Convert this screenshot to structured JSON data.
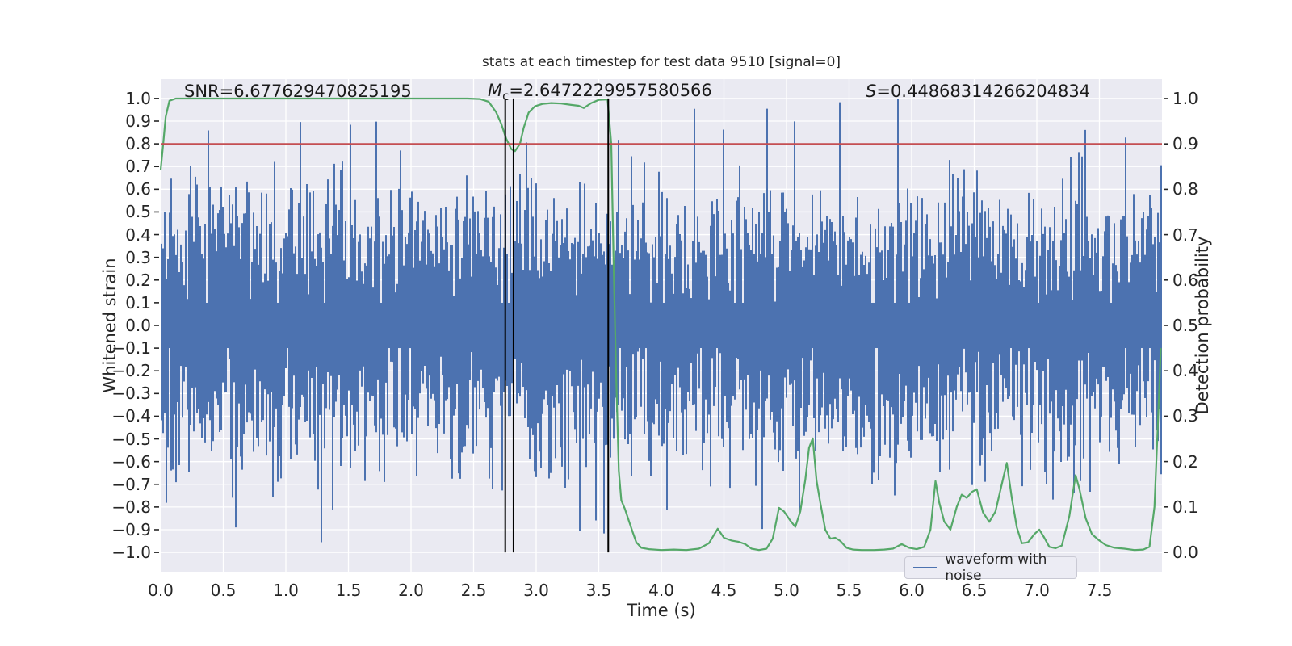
{
  "figure": {
    "title": "stats at each timestep for test data 9510 [signal=0]"
  },
  "annotations": {
    "snr": {
      "text": "SNR=6.677629470825195"
    },
    "mc": {
      "symbol": "M",
      "subscript": "c",
      "rest": "=2.6472229957580566"
    },
    "s": {
      "symbol": "S",
      "rest": "=0.44868314266204834"
    }
  },
  "axes": {
    "x": {
      "label": "Time (s)",
      "min": 0,
      "max": 8,
      "ticks": [
        0,
        0.5,
        1,
        1.5,
        2,
        2.5,
        3,
        3.5,
        4,
        4.5,
        5,
        5.5,
        6,
        6.5,
        7,
        7.5
      ],
      "tick_labels": [
        "0.0",
        "0.5",
        "1.0",
        "1.5",
        "2.0",
        "2.5",
        "3.0",
        "3.5",
        "4.0",
        "4.5",
        "5.0",
        "5.5",
        "6.0",
        "6.5",
        "7.0",
        "7.5"
      ]
    },
    "y_left": {
      "label": "Whitened strain",
      "min": -1.085,
      "max": 1.085,
      "ticks": [
        1.0,
        0.9,
        0.8,
        0.7,
        0.6,
        0.5,
        0.4,
        0.3,
        0.2,
        0.1,
        0.0,
        -0.1,
        -0.2,
        -0.3,
        -0.4,
        -0.5,
        -0.6,
        -0.7,
        -0.8,
        -0.9,
        -1.0
      ],
      "tick_labels": [
        "1.0",
        "0.9",
        "0.8",
        "0.7",
        "0.6",
        "0.5",
        "0.4",
        "0.3",
        "0.2",
        "0.1",
        "0.0",
        "−0.1",
        "−0.2",
        "−0.3",
        "−0.4",
        "−0.5",
        "−0.6",
        "−0.7",
        "−0.8",
        "−0.9",
        "−1.0"
      ]
    },
    "y_right": {
      "label": "Detection probability",
      "min": -0.0427,
      "max": 1.0427,
      "ticks": [
        1.0,
        0.9,
        0.8,
        0.7,
        0.6,
        0.5,
        0.4,
        0.3,
        0.2,
        0.1,
        0.0
      ],
      "tick_labels": [
        "1.0",
        "0.9",
        "0.8",
        "0.7",
        "0.6",
        "0.5",
        "0.4",
        "0.3",
        "0.2",
        "0.1",
        "0.0"
      ]
    }
  },
  "legend": {
    "items": [
      {
        "label": "waveform with noise",
        "color": "#4c72b0"
      }
    ]
  },
  "colors": {
    "plot_background": "#eaeaf2",
    "grid": "#ffffff",
    "waveform": "#4c72b0",
    "probability": "#55a868",
    "threshold": "#c44e52",
    "marker": "#000000",
    "text": "#262626"
  },
  "chart_data": {
    "type": "line",
    "title": "stats at each timestep for test data 9510 [signal=0]",
    "xlabel": "Time (s)",
    "ylabel_left": "Whitened strain",
    "ylabel_right": "Detection probability",
    "xlim": [
      0,
      8
    ],
    "ylim_left": [
      -1.085,
      1.085
    ],
    "ylim_right": [
      -0.0427,
      1.0427
    ],
    "grid": true,
    "legend_position": "lower right",
    "series": [
      {
        "name": "waveform with noise",
        "axis": "left",
        "kind": "noise-envelope",
        "color": "#4c72b0",
        "note": "dense whitened-noise trace spanning roughly ±0.4 with spikes to ±1.0; reproduced via seeded generator",
        "generator": {
          "seed": 20,
          "columns": 620,
          "samples_per_column": 8,
          "sigma": 0.28,
          "clip": 1.02,
          "floor": 0.1
        }
      },
      {
        "name": "detection probability",
        "axis": "right",
        "kind": "line",
        "color": "#55a868",
        "points": [
          [
            0.0,
            0.843
          ],
          [
            0.02,
            0.9
          ],
          [
            0.04,
            0.96
          ],
          [
            0.07,
            0.995
          ],
          [
            0.12,
            1.0
          ],
          [
            0.5,
            1.0
          ],
          [
            1.0,
            1.0
          ],
          [
            1.5,
            1.0
          ],
          [
            2.0,
            1.0
          ],
          [
            2.45,
            1.0
          ],
          [
            2.55,
            0.999
          ],
          [
            2.62,
            0.993
          ],
          [
            2.68,
            0.97
          ],
          [
            2.72,
            0.945
          ],
          [
            2.76,
            0.912
          ],
          [
            2.8,
            0.889
          ],
          [
            2.83,
            0.884
          ],
          [
            2.87,
            0.9
          ],
          [
            2.9,
            0.935
          ],
          [
            2.94,
            0.969
          ],
          [
            2.99,
            0.983
          ],
          [
            3.05,
            0.988
          ],
          [
            3.12,
            0.99
          ],
          [
            3.2,
            0.989
          ],
          [
            3.28,
            0.986
          ],
          [
            3.34,
            0.984
          ],
          [
            3.38,
            0.979
          ],
          [
            3.44,
            0.99
          ],
          [
            3.5,
            0.997
          ],
          [
            3.57,
            0.998
          ],
          [
            3.6,
            0.9
          ],
          [
            3.62,
            0.62
          ],
          [
            3.64,
            0.38
          ],
          [
            3.66,
            0.18
          ],
          [
            3.68,
            0.115
          ],
          [
            3.71,
            0.095
          ],
          [
            3.74,
            0.07
          ],
          [
            3.77,
            0.045
          ],
          [
            3.8,
            0.022
          ],
          [
            3.84,
            0.01
          ],
          [
            3.9,
            0.007
          ],
          [
            4.0,
            0.005
          ],
          [
            4.1,
            0.006
          ],
          [
            4.2,
            0.005
          ],
          [
            4.3,
            0.008
          ],
          [
            4.38,
            0.02
          ],
          [
            4.45,
            0.052
          ],
          [
            4.5,
            0.032
          ],
          [
            4.56,
            0.026
          ],
          [
            4.62,
            0.023
          ],
          [
            4.67,
            0.018
          ],
          [
            4.72,
            0.008
          ],
          [
            4.78,
            0.005
          ],
          [
            4.84,
            0.008
          ],
          [
            4.89,
            0.03
          ],
          [
            4.94,
            0.098
          ],
          [
            4.98,
            0.09
          ],
          [
            5.03,
            0.07
          ],
          [
            5.07,
            0.056
          ],
          [
            5.11,
            0.09
          ],
          [
            5.15,
            0.16
          ],
          [
            5.18,
            0.23
          ],
          [
            5.21,
            0.251
          ],
          [
            5.24,
            0.158
          ],
          [
            5.27,
            0.11
          ],
          [
            5.31,
            0.05
          ],
          [
            5.35,
            0.03
          ],
          [
            5.39,
            0.032
          ],
          [
            5.43,
            0.025
          ],
          [
            5.48,
            0.01
          ],
          [
            5.53,
            0.006
          ],
          [
            5.6,
            0.005
          ],
          [
            5.7,
            0.005
          ],
          [
            5.78,
            0.006
          ],
          [
            5.85,
            0.008
          ],
          [
            5.92,
            0.018
          ],
          [
            5.98,
            0.01
          ],
          [
            6.04,
            0.007
          ],
          [
            6.1,
            0.012
          ],
          [
            6.15,
            0.05
          ],
          [
            6.19,
            0.157
          ],
          [
            6.22,
            0.11
          ],
          [
            6.26,
            0.068
          ],
          [
            6.31,
            0.05
          ],
          [
            6.36,
            0.1
          ],
          [
            6.4,
            0.127
          ],
          [
            6.44,
            0.12
          ],
          [
            6.48,
            0.133
          ],
          [
            6.52,
            0.139
          ],
          [
            6.57,
            0.088
          ],
          [
            6.62,
            0.067
          ],
          [
            6.67,
            0.09
          ],
          [
            6.72,
            0.15
          ],
          [
            6.76,
            0.197
          ],
          [
            6.8,
            0.12
          ],
          [
            6.84,
            0.055
          ],
          [
            6.88,
            0.02
          ],
          [
            6.93,
            0.022
          ],
          [
            6.98,
            0.04
          ],
          [
            7.02,
            0.05
          ],
          [
            7.06,
            0.032
          ],
          [
            7.1,
            0.012
          ],
          [
            7.15,
            0.009
          ],
          [
            7.2,
            0.015
          ],
          [
            7.26,
            0.08
          ],
          [
            7.31,
            0.17
          ],
          [
            7.34,
            0.14
          ],
          [
            7.39,
            0.075
          ],
          [
            7.44,
            0.04
          ],
          [
            7.49,
            0.028
          ],
          [
            7.55,
            0.016
          ],
          [
            7.62,
            0.01
          ],
          [
            7.7,
            0.008
          ],
          [
            7.78,
            0.005
          ],
          [
            7.85,
            0.006
          ],
          [
            7.9,
            0.012
          ],
          [
            7.94,
            0.1
          ],
          [
            7.97,
            0.3
          ],
          [
            7.99,
            0.45
          ]
        ]
      },
      {
        "name": "detection threshold",
        "axis": "right",
        "kind": "hline",
        "color": "#c44e52",
        "y": 0.9
      },
      {
        "name": "event markers",
        "axis": "left",
        "kind": "vlines",
        "color": "#000000",
        "x": [
          2.753,
          2.819,
          3.576
        ],
        "ymin": -1.0,
        "ymax": 1.0
      }
    ]
  }
}
